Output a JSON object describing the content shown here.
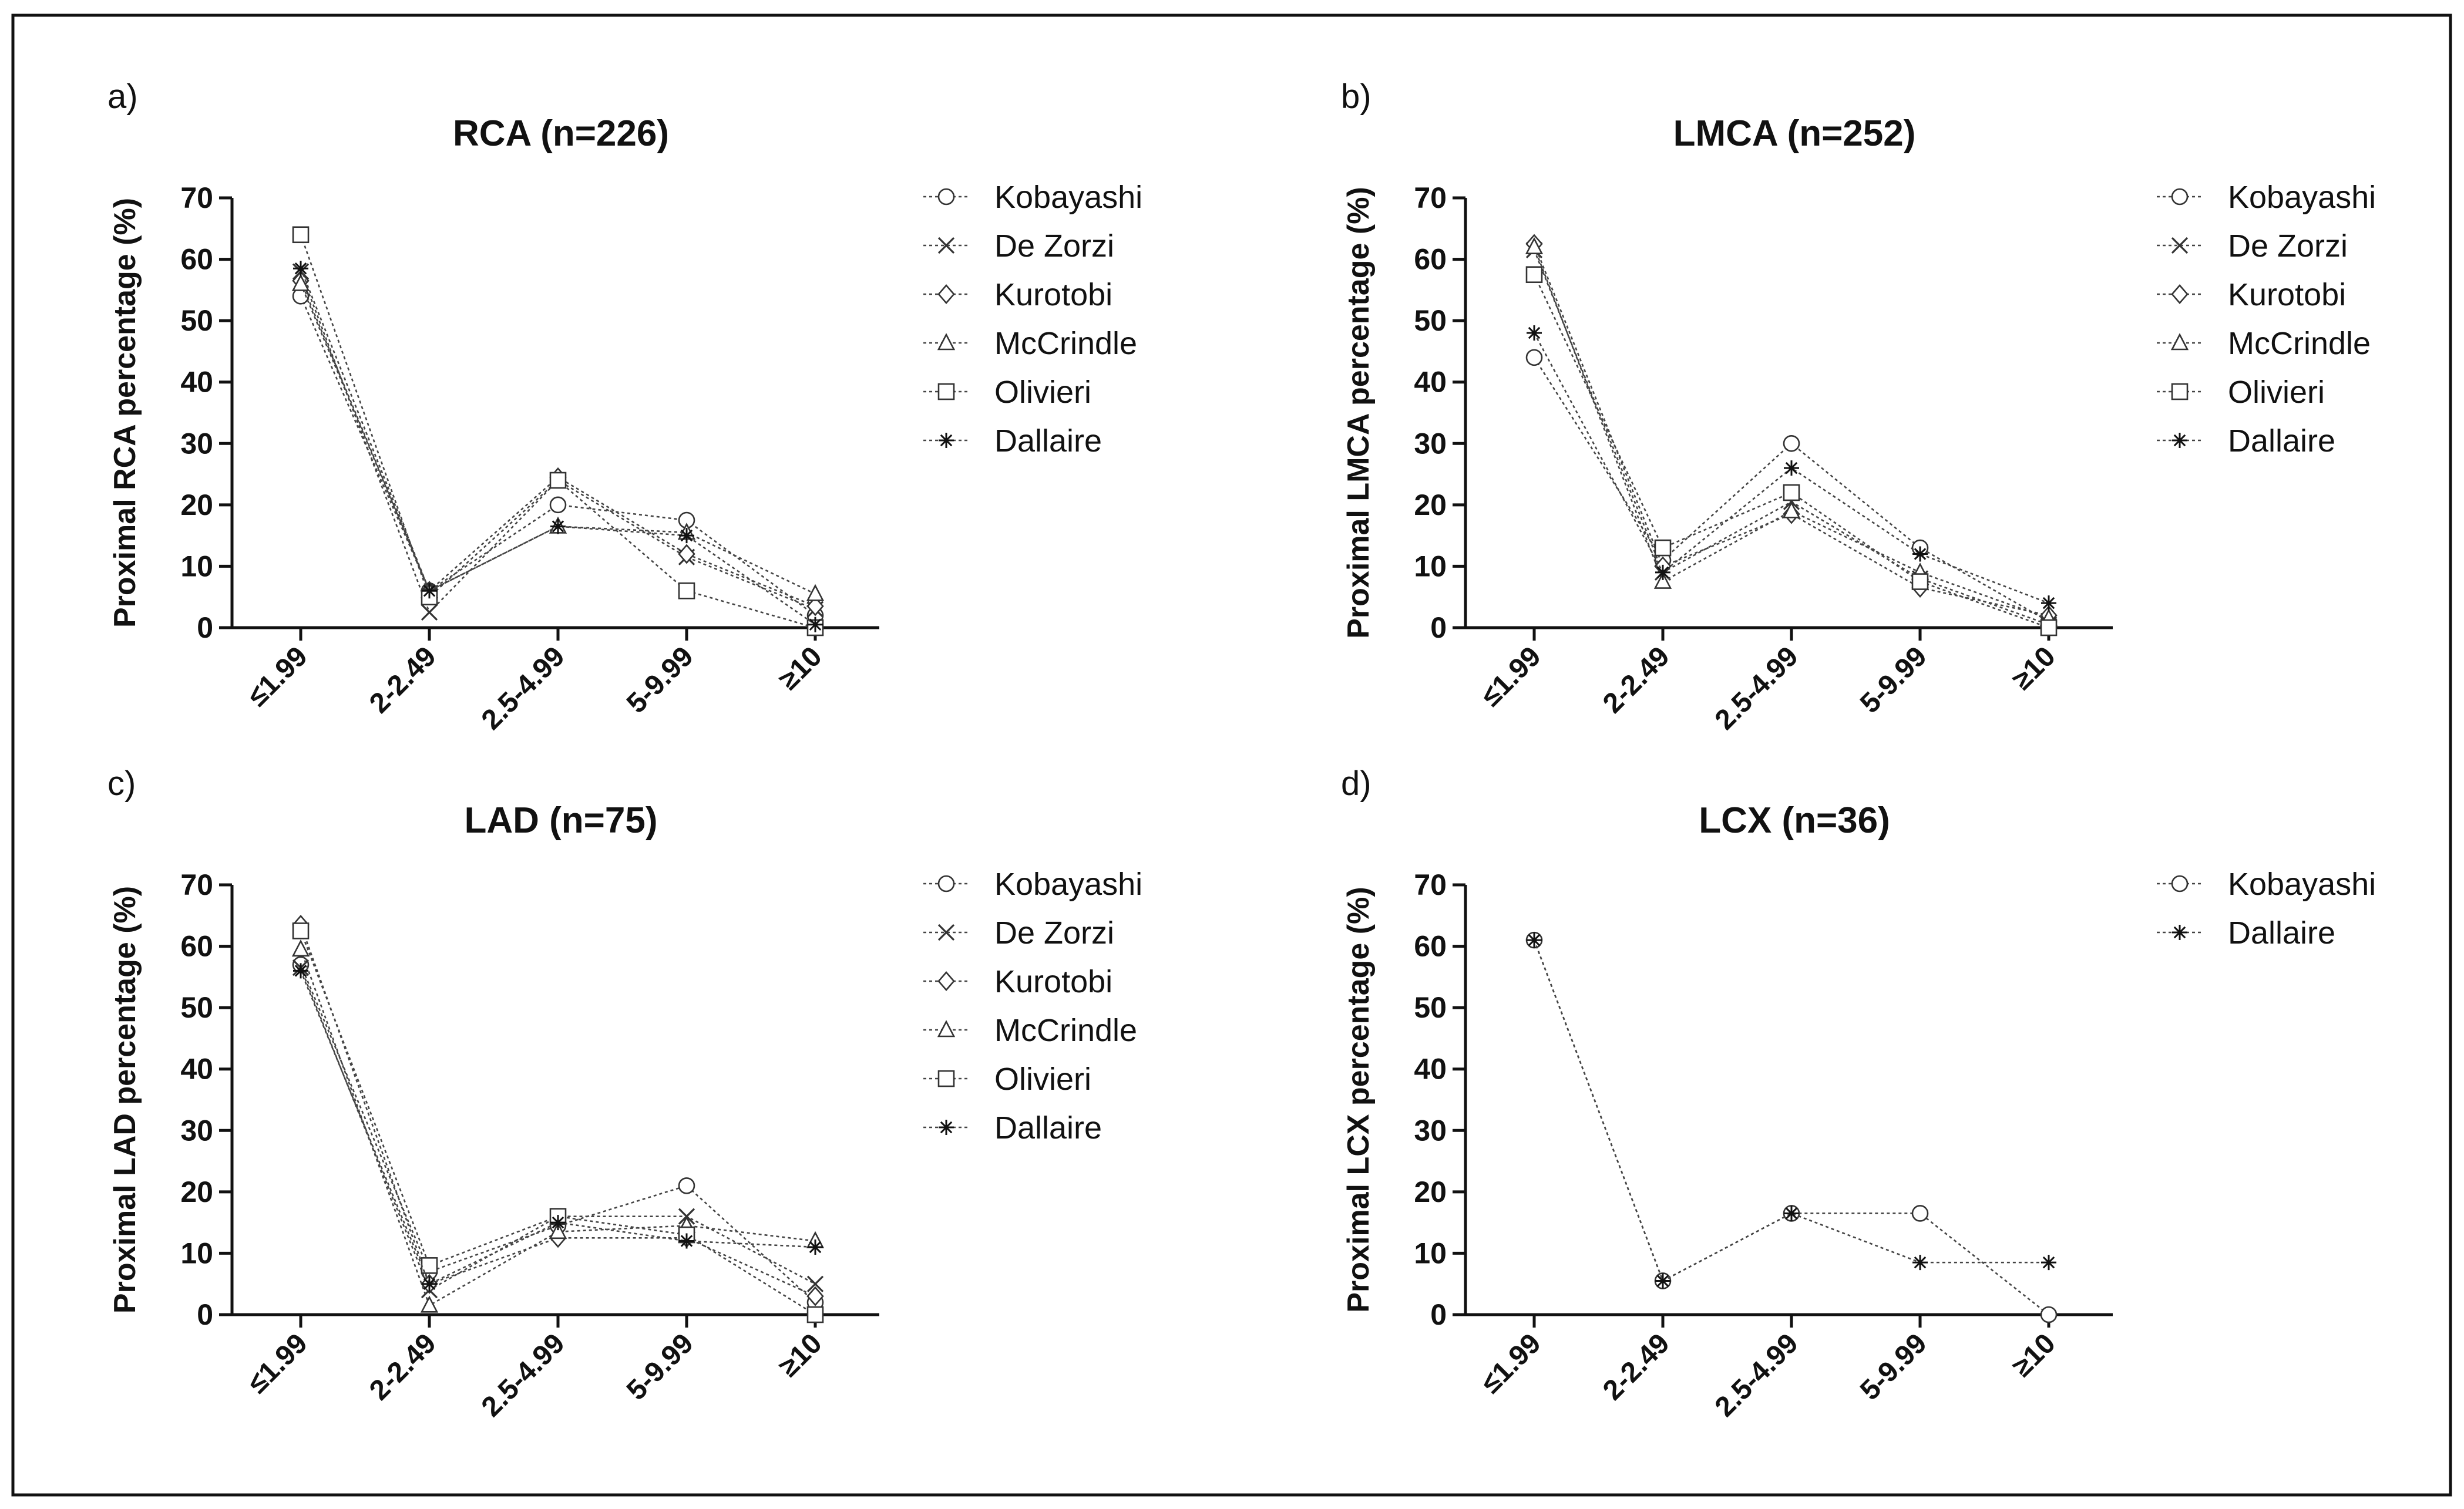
{
  "chart_data": [
    {
      "panel": "a)",
      "type": "line",
      "title": "RCA (n=226)",
      "ylabel": "Proximal RCA percentage (%)",
      "xlabel": "",
      "categories": [
        "≤1.99",
        "2-2.49",
        "2.5-4.99",
        "5-9.99",
        "≥10"
      ],
      "ylim": [
        0,
        70
      ],
      "yticks": [
        "0",
        "10",
        "20",
        "30",
        "40",
        "50",
        "60",
        "70"
      ],
      "legend_position": "top-right",
      "series": [
        {
          "name": "Kobayashi",
          "marker": "circle",
          "values": [
            54,
            6,
            20,
            17.5,
            2
          ]
        },
        {
          "name": "De Zorzi",
          "marker": "x",
          "values": [
            58,
            2.5,
            24,
            11.5,
            3
          ]
        },
        {
          "name": "Kurotobi",
          "marker": "diamond",
          "values": [
            56.5,
            6,
            24.5,
            12,
            3.5
          ]
        },
        {
          "name": "McCrindle",
          "marker": "triangle",
          "values": [
            56,
            6,
            16.5,
            15.5,
            5.5
          ]
        },
        {
          "name": "Olivieri",
          "marker": "square",
          "values": [
            64,
            5,
            24,
            6,
            0
          ]
        },
        {
          "name": "Dallaire",
          "marker": "asterisk",
          "values": [
            58.5,
            6,
            16.5,
            15,
            0.5
          ]
        }
      ]
    },
    {
      "panel": "b)",
      "type": "line",
      "title": "LMCA (n=252)",
      "ylabel": "Proximal LMCA percentage (%)",
      "xlabel": "",
      "categories": [
        "≤1.99",
        "2-2.49",
        "2.5-4.99",
        "5-9.99",
        "≥10"
      ],
      "ylim": [
        0,
        70
      ],
      "yticks": [
        "0",
        "10",
        "20",
        "30",
        "40",
        "50",
        "60",
        "70"
      ],
      "legend_position": "top-right",
      "series": [
        {
          "name": "Kobayashi",
          "marker": "circle",
          "values": [
            44,
            11,
            30,
            13,
            1
          ]
        },
        {
          "name": "De Zorzi",
          "marker": "x",
          "values": [
            61.5,
            9,
            20.5,
            8,
            0.5
          ]
        },
        {
          "name": "Kurotobi",
          "marker": "diamond",
          "values": [
            62.5,
            10,
            18.5,
            6.5,
            2
          ]
        },
        {
          "name": "McCrindle",
          "marker": "triangle",
          "values": [
            62,
            7.5,
            19,
            9,
            1.5
          ]
        },
        {
          "name": "Olivieri",
          "marker": "square",
          "values": [
            57.5,
            13,
            22,
            7.5,
            0
          ]
        },
        {
          "name": "Dallaire",
          "marker": "asterisk",
          "values": [
            48,
            9,
            26,
            12,
            4
          ]
        }
      ]
    },
    {
      "panel": "c)",
      "type": "line",
      "title": "LAD (n=75)",
      "ylabel": "Proximal LAD percentage (%)",
      "xlabel": "",
      "categories": [
        "≤1.99",
        "2-2.49",
        "2.5-4.99",
        "5-9.99",
        "≥10"
      ],
      "ylim": [
        0,
        70
      ],
      "yticks": [
        "0",
        "10",
        "20",
        "30",
        "40",
        "50",
        "60",
        "70"
      ],
      "legend_position": "top-right",
      "series": [
        {
          "name": "Kobayashi",
          "marker": "circle",
          "values": [
            57,
            7,
            14.5,
            21,
            2
          ]
        },
        {
          "name": "De Zorzi",
          "marker": "x",
          "values": [
            56.5,
            4,
            16,
            16,
            5
          ]
        },
        {
          "name": "Kurotobi",
          "marker": "diamond",
          "values": [
            63.5,
            5,
            12.5,
            12.5,
            3
          ]
        },
        {
          "name": "McCrindle",
          "marker": "triangle",
          "values": [
            59.5,
            1.5,
            13.5,
            14.5,
            12
          ]
        },
        {
          "name": "Olivieri",
          "marker": "square",
          "values": [
            62.5,
            8,
            16,
            13,
            0
          ]
        },
        {
          "name": "Dallaire",
          "marker": "asterisk",
          "values": [
            56,
            5,
            15,
            12,
            11
          ]
        }
      ]
    },
    {
      "panel": "d)",
      "type": "line",
      "title": "LCX (n=36)",
      "ylabel": "Proximal LCX percentage (%)",
      "xlabel": "",
      "categories": [
        "≤1.99",
        "2-2.49",
        "2.5-4.99",
        "5-9.99",
        "≥10"
      ],
      "ylim": [
        0,
        70
      ],
      "yticks": [
        "0",
        "10",
        "20",
        "30",
        "40",
        "50",
        "60",
        "70"
      ],
      "legend_position": "top-right",
      "series": [
        {
          "name": "Kobayashi",
          "marker": "circle",
          "values": [
            61,
            5.5,
            16.5,
            16.5,
            0
          ]
        },
        {
          "name": "Dallaire",
          "marker": "asterisk",
          "values": [
            61,
            5.5,
            16.5,
            8.5,
            8.5
          ]
        }
      ]
    }
  ]
}
